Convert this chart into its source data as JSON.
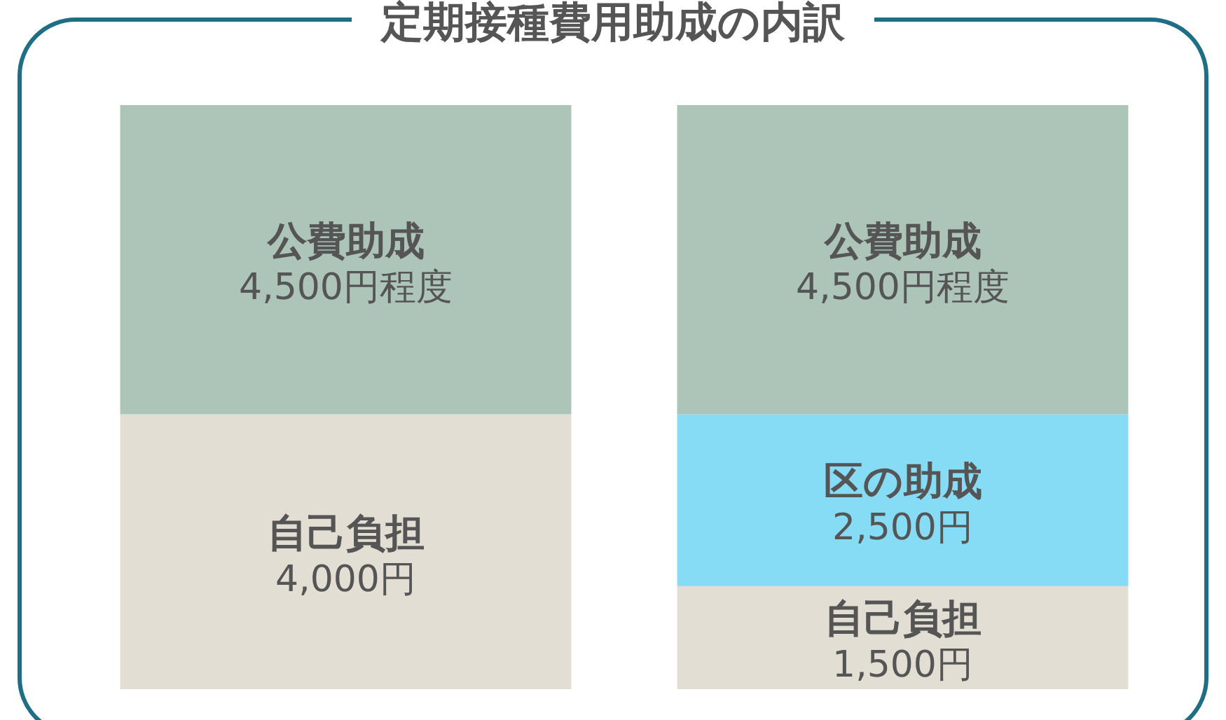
{
  "chart_data": {
    "type": "bar",
    "title": "定期接種費用助成の内訳",
    "categories": [
      null,
      null
    ],
    "stacked": true,
    "series": [
      {
        "name": "自己負担",
        "color": "#e3ded3",
        "values": [
          4000,
          1500
        ],
        "value_labels": [
          "4,000円",
          "1,500円"
        ]
      },
      {
        "name": "区の助成",
        "color": "#87dcf5",
        "values": [
          null,
          2500
        ],
        "value_labels": [
          null,
          "2,500円"
        ]
      },
      {
        "name": "公費助成",
        "color": "#adc4b9",
        "values": [
          4500,
          4500
        ],
        "value_labels": [
          "4,500円程度",
          "4,500円程度"
        ]
      }
    ]
  }
}
